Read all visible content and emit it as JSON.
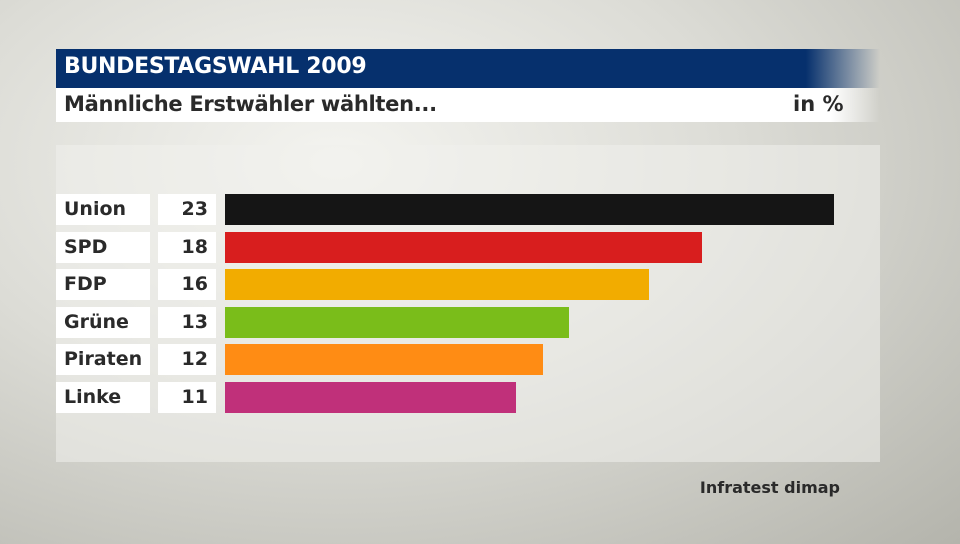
{
  "header": {
    "title": "BUNDESTAGSWAHL 2009"
  },
  "subtitle": {
    "text": "Männliche Erstwähler wählten...",
    "unit": "in %"
  },
  "source": "Infratest dimap",
  "chart_data": {
    "type": "bar",
    "orientation": "horizontal",
    "title": "Männliche Erstwähler wählten...",
    "unit": "in %",
    "categories": [
      "Union",
      "SPD",
      "FDP",
      "Grüne",
      "Piraten",
      "Linke"
    ],
    "values": [
      23,
      18,
      16,
      13,
      12,
      11
    ],
    "colors": [
      "#151515",
      "#d81e1e",
      "#f2ac00",
      "#7abd1a",
      "#ff8c14",
      "#c0307a"
    ],
    "xlim": [
      0,
      23
    ],
    "grid": false
  }
}
